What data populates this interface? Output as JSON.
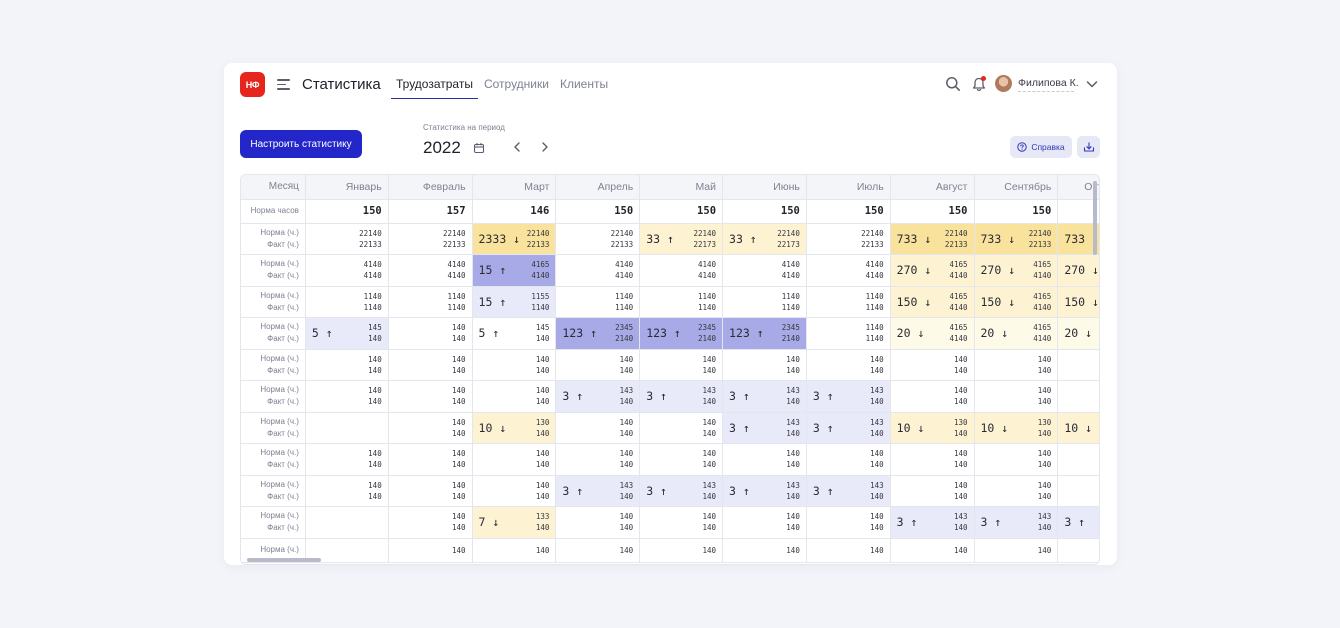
{
  "header": {
    "logo": "НФ",
    "title": "Статистика",
    "tabs": [
      {
        "label": "Трудозатраты",
        "active": true
      },
      {
        "label": "Сотрудники",
        "active": false
      },
      {
        "label": "Клиенты",
        "active": false
      }
    ],
    "user_name": "Филипова К."
  },
  "toolbar": {
    "configure_label": "Настроить статистику",
    "period_label": "Статистика на период",
    "year": "2022",
    "help_label": "Справка"
  },
  "colors": {
    "primary": "#2327c9",
    "logo_red": "#e6251c",
    "up_light": "#e9eaf9",
    "up_strong": "#a7aae6",
    "down_light": "#fdf3d3",
    "down_strong": "#f9e29b"
  },
  "table": {
    "header_label": "Месяц",
    "months": [
      "Январь",
      "Февраль",
      "Март",
      "Апрель",
      "Май",
      "Июнь",
      "Июль",
      "Август",
      "Сентябрь",
      "Октябрь"
    ],
    "norm_label": "Норма часов",
    "norm_hours": [
      "150",
      "157",
      "146",
      "150",
      "150",
      "150",
      "150",
      "150",
      "150",
      ""
    ],
    "pair_labels": [
      "Норма (ч.)",
      "Факт (ч.)"
    ],
    "rows": [
      [
        {
          "a": "22140",
          "b": "22133"
        },
        {
          "a": "22140",
          "b": "22133"
        },
        {
          "a": "22140",
          "b": "22133",
          "d": "2333",
          "dir": "down",
          "lvl": "strong"
        },
        {
          "a": "22140",
          "b": "22133"
        },
        {
          "a": "22140",
          "b": "22173",
          "d": "33",
          "dir": "up",
          "lvl": "light_down"
        },
        {
          "a": "22140",
          "b": "22173",
          "d": "33",
          "dir": "up",
          "lvl": "light_down"
        },
        {
          "a": "22140",
          "b": "22133"
        },
        {
          "a": "22140",
          "b": "22133",
          "d": "733",
          "dir": "down",
          "lvl": "strong"
        },
        {
          "a": "22140",
          "b": "22133",
          "d": "733",
          "dir": "down",
          "lvl": "strong"
        },
        {
          "a": "",
          "b": "",
          "d": "733",
          "dir": "down",
          "lvl": "strong"
        }
      ],
      [
        {
          "a": "4140",
          "b": "4140"
        },
        {
          "a": "4140",
          "b": "4140"
        },
        {
          "a": "4165",
          "b": "4140",
          "d": "15",
          "dir": "up",
          "lvl": "strong"
        },
        {
          "a": "4140",
          "b": "4140"
        },
        {
          "a": "4140",
          "b": "4140"
        },
        {
          "a": "4140",
          "b": "4140"
        },
        {
          "a": "4140",
          "b": "4140"
        },
        {
          "a": "4165",
          "b": "4140",
          "d": "270",
          "dir": "down",
          "lvl": "light"
        },
        {
          "a": "4165",
          "b": "4140",
          "d": "270",
          "dir": "down",
          "lvl": "light"
        },
        {
          "a": "",
          "b": "",
          "d": "270",
          "dir": "down",
          "lvl": "light"
        }
      ],
      [
        {
          "a": "1140",
          "b": "1140"
        },
        {
          "a": "1140",
          "b": "1140"
        },
        {
          "a": "1155",
          "b": "1140",
          "d": "15",
          "dir": "up",
          "lvl": "light"
        },
        {
          "a": "1140",
          "b": "1140"
        },
        {
          "a": "1140",
          "b": "1140"
        },
        {
          "a": "1140",
          "b": "1140"
        },
        {
          "a": "1140",
          "b": "1140"
        },
        {
          "a": "4165",
          "b": "4140",
          "d": "150",
          "dir": "down",
          "lvl": "light"
        },
        {
          "a": "4165",
          "b": "4140",
          "d": "150",
          "dir": "down",
          "lvl": "light"
        },
        {
          "a": "",
          "b": "",
          "d": "150",
          "dir": "down",
          "lvl": "light"
        }
      ],
      [
        {
          "a": "145",
          "b": "140",
          "d": "5",
          "dir": "up",
          "lvl": "light"
        },
        {
          "a": "140",
          "b": "140"
        },
        {
          "a": "145",
          "b": "140",
          "d": "5",
          "dir": "up",
          "lvl": "none"
        },
        {
          "a": "2345",
          "b": "2140",
          "d": "123",
          "dir": "up",
          "lvl": "strong"
        },
        {
          "a": "2345",
          "b": "2140",
          "d": "123",
          "dir": "up",
          "lvl": "strong"
        },
        {
          "a": "2345",
          "b": "2140",
          "d": "123",
          "dir": "up",
          "lvl": "strong"
        },
        {
          "a": "1140",
          "b": "1140"
        },
        {
          "a": "4165",
          "b": "4140",
          "d": "20",
          "dir": "down",
          "lvl": "pale"
        },
        {
          "a": "4165",
          "b": "4140",
          "d": "20",
          "dir": "down",
          "lvl": "pale"
        },
        {
          "a": "",
          "b": "",
          "d": "20",
          "dir": "down",
          "lvl": "pale"
        }
      ],
      [
        {
          "a": "140",
          "b": "140"
        },
        {
          "a": "140",
          "b": "140"
        },
        {
          "a": "140",
          "b": "140"
        },
        {
          "a": "140",
          "b": "140"
        },
        {
          "a": "140",
          "b": "140"
        },
        {
          "a": "140",
          "b": "140"
        },
        {
          "a": "140",
          "b": "140"
        },
        {
          "a": "140",
          "b": "140"
        },
        {
          "a": "140",
          "b": "140"
        },
        {
          "a": "",
          "b": ""
        }
      ],
      [
        {
          "a": "140",
          "b": "140"
        },
        {
          "a": "140",
          "b": "140"
        },
        {
          "a": "140",
          "b": "140"
        },
        {
          "a": "143",
          "b": "140",
          "d": "3",
          "dir": "up",
          "lvl": "light"
        },
        {
          "a": "143",
          "b": "140",
          "d": "3",
          "dir": "up",
          "lvl": "light"
        },
        {
          "a": "143",
          "b": "140",
          "d": "3",
          "dir": "up",
          "lvl": "light"
        },
        {
          "a": "143",
          "b": "140",
          "d": "3",
          "dir": "up",
          "lvl": "light"
        },
        {
          "a": "140",
          "b": "140"
        },
        {
          "a": "140",
          "b": "140"
        },
        {
          "a": "",
          "b": ""
        }
      ],
      [
        {
          "a": "",
          "b": ""
        },
        {
          "a": "140",
          "b": "140"
        },
        {
          "a": "130",
          "b": "140",
          "d": "10",
          "dir": "down",
          "lvl": "light"
        },
        {
          "a": "140",
          "b": "140"
        },
        {
          "a": "140",
          "b": "140"
        },
        {
          "a": "143",
          "b": "140",
          "d": "3",
          "dir": "up",
          "lvl": "light"
        },
        {
          "a": "143",
          "b": "140",
          "d": "3",
          "dir": "up",
          "lvl": "light"
        },
        {
          "a": "130",
          "b": "140",
          "d": "10",
          "dir": "down",
          "lvl": "light"
        },
        {
          "a": "130",
          "b": "140",
          "d": "10",
          "dir": "down",
          "lvl": "light"
        },
        {
          "a": "",
          "b": "",
          "d": "10",
          "dir": "down",
          "lvl": "light"
        }
      ],
      [
        {
          "a": "140",
          "b": "140"
        },
        {
          "a": "140",
          "b": "140"
        },
        {
          "a": "140",
          "b": "140"
        },
        {
          "a": "140",
          "b": "140"
        },
        {
          "a": "140",
          "b": "140"
        },
        {
          "a": "140",
          "b": "140"
        },
        {
          "a": "140",
          "b": "140"
        },
        {
          "a": "140",
          "b": "140"
        },
        {
          "a": "140",
          "b": "140"
        },
        {
          "a": "",
          "b": ""
        }
      ],
      [
        {
          "a": "140",
          "b": "140"
        },
        {
          "a": "140",
          "b": "140"
        },
        {
          "a": "140",
          "b": "140"
        },
        {
          "a": "143",
          "b": "140",
          "d": "3",
          "dir": "up",
          "lvl": "light"
        },
        {
          "a": "143",
          "b": "140",
          "d": "3",
          "dir": "up",
          "lvl": "light"
        },
        {
          "a": "143",
          "b": "140",
          "d": "3",
          "dir": "up",
          "lvl": "light"
        },
        {
          "a": "143",
          "b": "140",
          "d": "3",
          "dir": "up",
          "lvl": "light"
        },
        {
          "a": "140",
          "b": "140"
        },
        {
          "a": "140",
          "b": "140"
        },
        {
          "a": "",
          "b": ""
        }
      ],
      [
        {
          "a": "",
          "b": ""
        },
        {
          "a": "140",
          "b": "140"
        },
        {
          "a": "133",
          "b": "140",
          "d": "7",
          "dir": "down",
          "lvl": "light"
        },
        {
          "a": "140",
          "b": "140"
        },
        {
          "a": "140",
          "b": "140"
        },
        {
          "a": "140",
          "b": "140"
        },
        {
          "a": "140",
          "b": "140"
        },
        {
          "a": "143",
          "b": "140",
          "d": "3",
          "dir": "up",
          "lvl": "light"
        },
        {
          "a": "143",
          "b": "140",
          "d": "3",
          "dir": "up",
          "lvl": "light"
        },
        {
          "a": "",
          "b": "",
          "d": "3",
          "dir": "up",
          "lvl": "light"
        }
      ],
      [
        {
          "a": "",
          "b": ""
        },
        {
          "a": "140",
          "b": ""
        },
        {
          "a": "140",
          "b": ""
        },
        {
          "a": "140",
          "b": ""
        },
        {
          "a": "140",
          "b": ""
        },
        {
          "a": "140",
          "b": ""
        },
        {
          "a": "140",
          "b": ""
        },
        {
          "a": "140",
          "b": ""
        },
        {
          "a": "140",
          "b": ""
        },
        {
          "a": "",
          "b": ""
        }
      ]
    ]
  }
}
